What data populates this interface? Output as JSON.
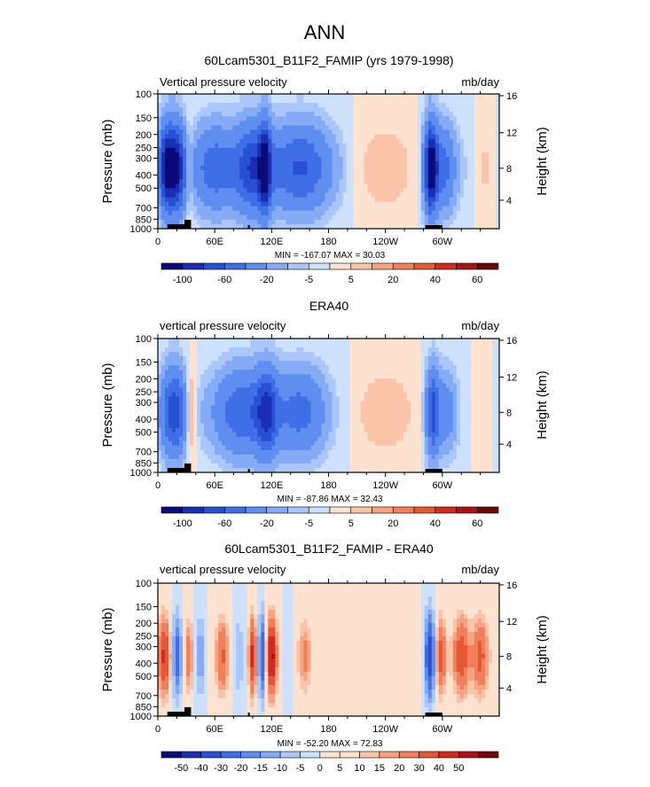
{
  "figure_title": "ANN",
  "chart_data": [
    {
      "type": "heatmap",
      "title": "60Lcam5301_B11F2_FAMIP (yrs 1979-1998)",
      "left_label": "Vertical pressure velocity",
      "right_label": "mb/day",
      "ylabel": "Pressure (mb)",
      "ylabel_right": "Height (km)",
      "y_ticks": [
        "100",
        "150",
        "200",
        "250",
        "300",
        "400",
        "500",
        "700",
        "850",
        "1000"
      ],
      "y_ticks_right": [
        "16",
        "12",
        "8",
        "4"
      ],
      "x_ticks": [
        "0",
        "60E",
        "120E",
        "180",
        "120W",
        "60W"
      ],
      "min_max_text": "MIN = -167.07   MAX =  30.03",
      "colorbar_labels": [
        "-100",
        "-60",
        "-20",
        "-5",
        "5",
        "20",
        "40",
        "60"
      ],
      "colorbar_levels": [
        -120,
        -100,
        -80,
        -60,
        -40,
        -20,
        -10,
        -5,
        0,
        5,
        10,
        20,
        30,
        40,
        60,
        80
      ],
      "field_min": -167.07,
      "field_max": 30.03
    },
    {
      "type": "heatmap",
      "title": "ERA40",
      "left_label": "vertical pressure velocity",
      "right_label": "mb/day",
      "ylabel": "Pressure (mb)",
      "ylabel_right": "Height (km)",
      "y_ticks": [
        "100",
        "150",
        "200",
        "250",
        "300",
        "400",
        "500",
        "700",
        "850",
        "1000"
      ],
      "y_ticks_right": [
        "16",
        "12",
        "8",
        "4"
      ],
      "x_ticks": [
        "0",
        "60E",
        "120E",
        "180",
        "120W",
        "60W"
      ],
      "min_max_text": "MIN = -87.86   MAX =  32.43",
      "colorbar_labels": [
        "-100",
        "-60",
        "-20",
        "-5",
        "5",
        "20",
        "40",
        "60"
      ],
      "colorbar_levels": [
        -120,
        -100,
        -80,
        -60,
        -40,
        -20,
        -10,
        -5,
        0,
        5,
        10,
        20,
        30,
        40,
        60,
        80
      ],
      "field_min": -87.86,
      "field_max": 32.43
    },
    {
      "type": "heatmap",
      "title": "60Lcam5301_B11F2_FAMIP - ERA40",
      "left_label": "vertical pressure velocity",
      "right_label": "mb/day",
      "ylabel": "Pressure (mb)",
      "ylabel_right": "Height (km)",
      "y_ticks": [
        "100",
        "150",
        "200",
        "250",
        "300",
        "400",
        "500",
        "700",
        "850",
        "1000"
      ],
      "y_ticks_right": [
        "16",
        "12",
        "8",
        "4"
      ],
      "x_ticks": [
        "0",
        "60E",
        "120E",
        "180",
        "120W",
        "60W"
      ],
      "min_max_text": "MIN = -52.20   MAX =  72.83",
      "colorbar_labels": [
        "-50",
        "-40",
        "-30",
        "-20",
        "-15",
        "-10",
        "-5",
        "0",
        "5",
        "10",
        "15",
        "20",
        "30",
        "40",
        "50"
      ],
      "colorbar_levels": [
        -60,
        -50,
        -40,
        -30,
        -20,
        -15,
        -10,
        -5,
        0,
        5,
        10,
        15,
        20,
        30,
        40,
        50,
        60
      ],
      "field_min": -52.2,
      "field_max": 72.83
    }
  ],
  "palette": [
    "#0a0a78",
    "#1b2db4",
    "#2850d2",
    "#3f6ee6",
    "#5f8ef0",
    "#86abf5",
    "#aac6fa",
    "#cde0fc",
    "#fde2d0",
    "#fbc4a8",
    "#f6a382",
    "#f07f5a",
    "#e65835",
    "#d12b1e",
    "#a81414",
    "#6e0707"
  ]
}
